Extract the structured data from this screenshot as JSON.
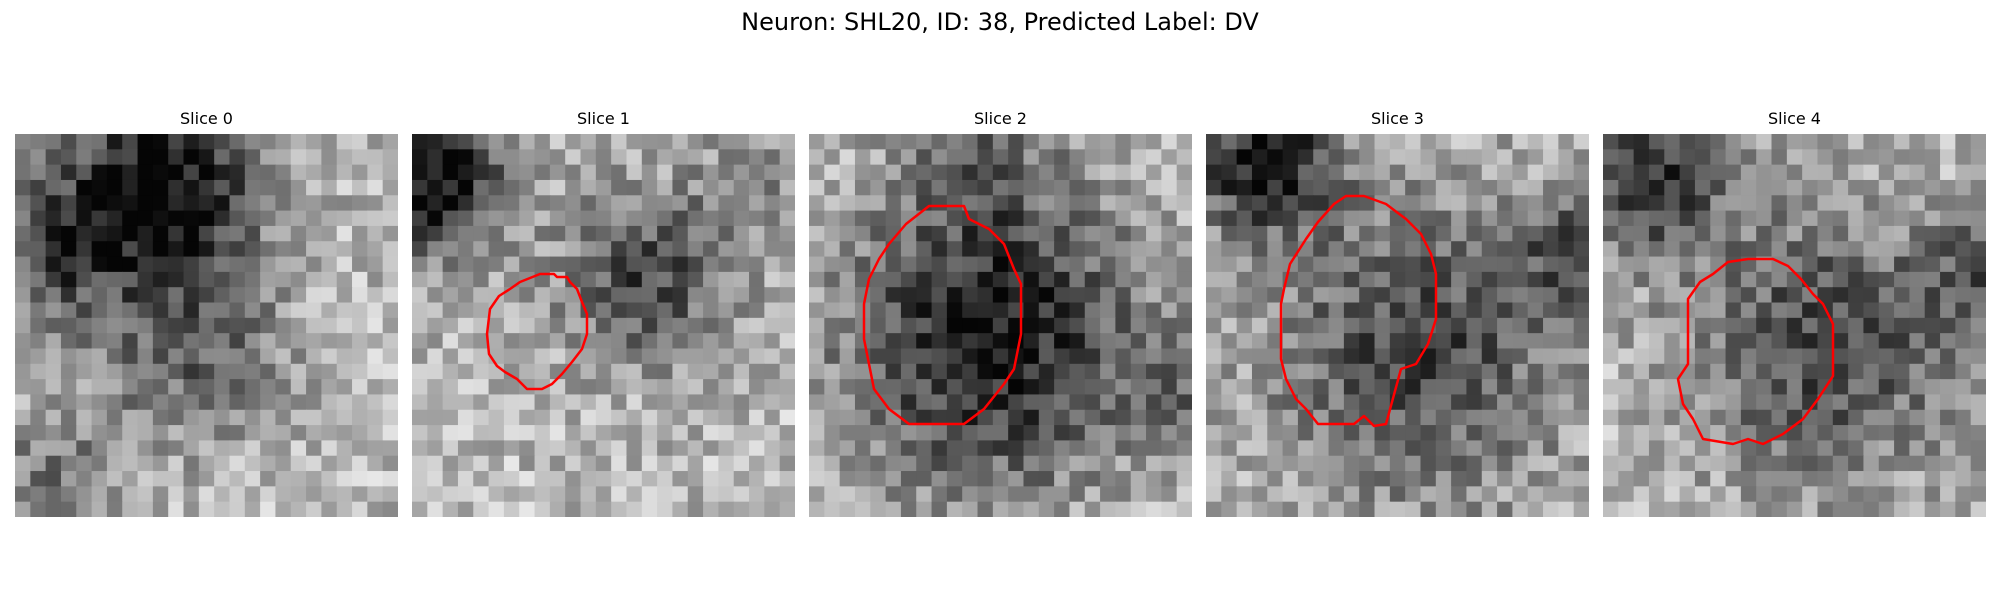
{
  "figure": {
    "title": "Neuron: SHL20, ID: 38, Predicted Label: DV",
    "contour_color": "#ff0000"
  },
  "panels": [
    {
      "title": "Slice 0",
      "has_contour": false,
      "seed": 11,
      "dark_blobs": [
        [
          0.38,
          0.14,
          0.18,
          0.95
        ],
        [
          0.1,
          0.3,
          0.12,
          0.55
        ],
        [
          0.45,
          0.55,
          0.17,
          0.45
        ],
        [
          0.1,
          0.9,
          0.14,
          0.35
        ]
      ]
    },
    {
      "title": "Slice 1",
      "has_contour": true,
      "seed": 23,
      "dark_blobs": [
        [
          0.06,
          0.12,
          0.13,
          0.95
        ],
        [
          0.62,
          0.37,
          0.16,
          0.6
        ],
        [
          0.9,
          0.1,
          0.1,
          0.25
        ]
      ]
    },
    {
      "title": "Slice 2",
      "has_contour": true,
      "seed": 37,
      "dark_blobs": [
        [
          0.48,
          0.53,
          0.27,
          0.85
        ],
        [
          0.45,
          0.06,
          0.13,
          0.3
        ],
        [
          0.98,
          0.65,
          0.1,
          0.3
        ]
      ]
    },
    {
      "title": "Slice 3",
      "has_contour": true,
      "seed": 41,
      "dark_blobs": [
        [
          0.15,
          0.07,
          0.13,
          0.85
        ],
        [
          0.56,
          0.56,
          0.28,
          0.6
        ],
        [
          0.98,
          0.3,
          0.1,
          0.6
        ]
      ]
    },
    {
      "title": "Slice 4",
      "has_contour": true,
      "seed": 53,
      "dark_blobs": [
        [
          0.12,
          0.12,
          0.14,
          0.7
        ],
        [
          0.58,
          0.55,
          0.25,
          0.6
        ],
        [
          0.98,
          0.35,
          0.1,
          0.4
        ]
      ]
    }
  ]
}
